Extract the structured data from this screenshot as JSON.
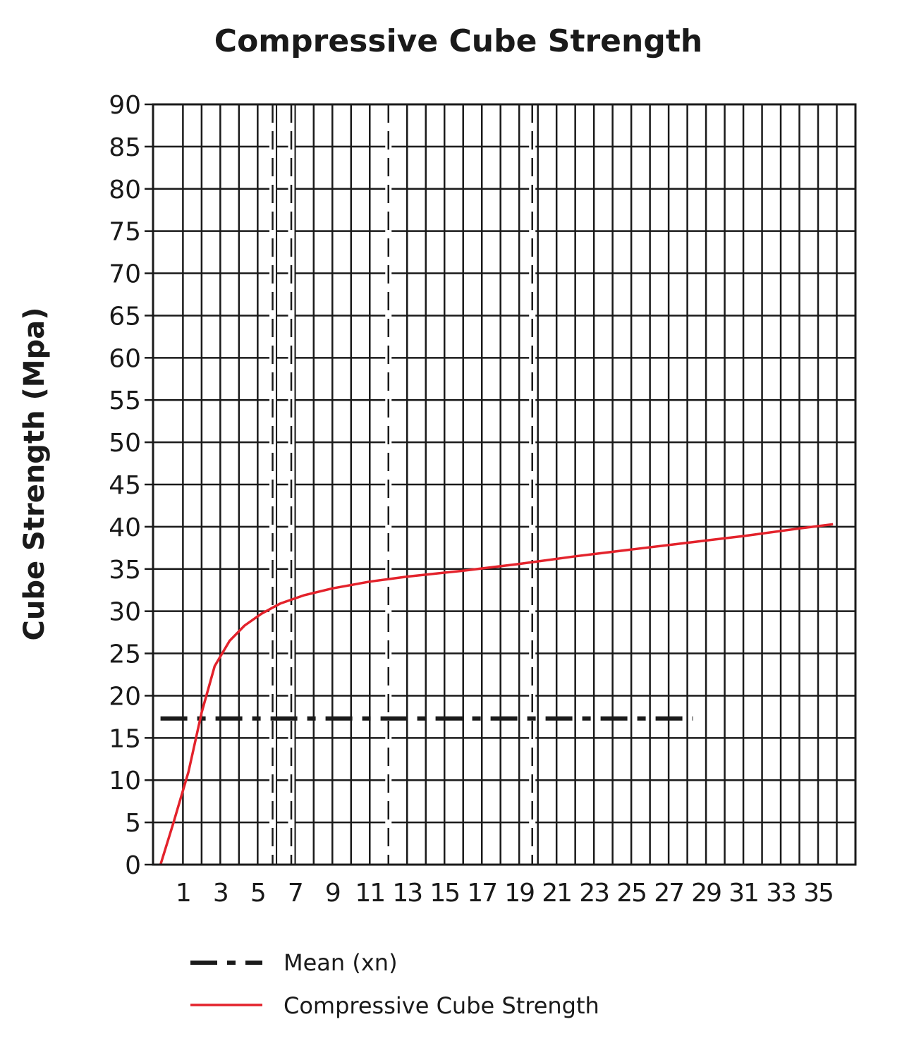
{
  "chart_data": {
    "type": "line",
    "title": "Compressive Cube Strength",
    "xlabel": "",
    "ylabel": "Cube Strength (Mpa)",
    "ylim": [
      0,
      90
    ],
    "xlim": [
      -0.6,
      37
    ],
    "y_ticks": [
      "0",
      "5",
      "10",
      "15",
      "20",
      "25",
      "30",
      "35",
      "40",
      "45",
      "50",
      "55",
      "60",
      "65",
      "70",
      "75",
      "80",
      "85",
      "90"
    ],
    "x_ticks": [
      "1",
      "3",
      "5",
      "7",
      "9",
      "11",
      "13",
      "15",
      "17",
      "19",
      "21",
      "23",
      "25",
      "27",
      "29",
      "31",
      "33",
      "35"
    ],
    "grid": true,
    "dashed_verticals_x": [
      5.8,
      6.8,
      12,
      19.7
    ],
    "series": [
      {
        "name": "Compressive Cube Strength",
        "color": "#e3222b",
        "style": "solid",
        "x": [
          -0.2,
          0.5,
          1.3,
          2.0,
          2.7,
          3.5,
          4.3,
          5.2,
          6.2,
          7.5,
          9.0,
          11.0,
          13.0,
          16.0,
          19.0,
          22.0,
          25.0,
          28.0,
          31.0,
          34.0,
          35.8
        ],
        "y": [
          0,
          5,
          11,
          18,
          23.5,
          26.5,
          28.3,
          29.7,
          30.9,
          31.9,
          32.7,
          33.5,
          34.1,
          34.8,
          35.6,
          36.5,
          37.3,
          38.1,
          38.9,
          39.8,
          40.3
        ]
      },
      {
        "name": "Mean (xn)",
        "color": "#1a1a1a",
        "style": "dash-dot",
        "x": [
          -0.2,
          28.3
        ],
        "y": [
          17.3,
          17.3
        ]
      }
    ],
    "legend": {
      "position": "bottom",
      "items": [
        {
          "label": "Mean (xn)",
          "style": "dash-dot",
          "color": "#1a1a1a"
        },
        {
          "label": "Compressive Cube Strength",
          "style": "solid",
          "color": "#e3222b"
        }
      ]
    }
  }
}
